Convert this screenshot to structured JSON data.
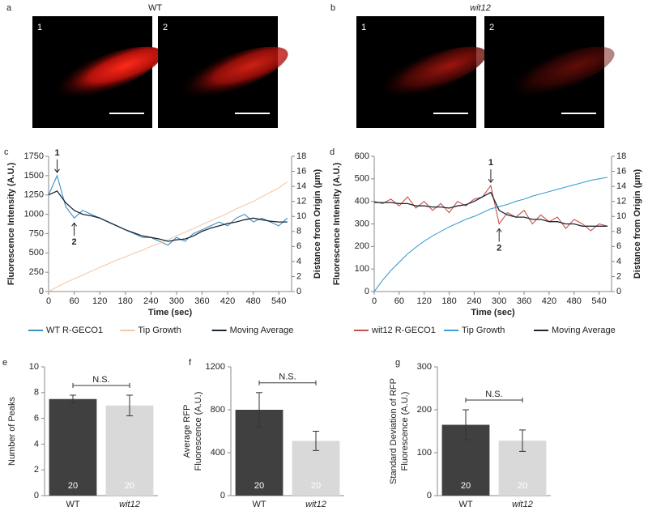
{
  "micrographs": [
    {
      "panel": "a",
      "title": "WT",
      "images": [
        "1",
        "2"
      ]
    },
    {
      "panel": "b",
      "title": "wit12",
      "images": [
        "1",
        "2"
      ]
    }
  ],
  "chart_data": [
    {
      "type": "line",
      "panel": "c",
      "x": [
        0,
        20,
        40,
        60,
        80,
        100,
        120,
        140,
        160,
        180,
        200,
        220,
        240,
        260,
        280,
        300,
        320,
        340,
        360,
        380,
        400,
        420,
        440,
        460,
        480,
        500,
        520,
        540,
        560
      ],
      "xlim": [
        0,
        570
      ],
      "xticks": [
        0,
        60,
        120,
        180,
        240,
        300,
        360,
        420,
        480,
        540
      ],
      "ylim": [
        0,
        1750
      ],
      "yticks": [
        0,
        250,
        500,
        750,
        1000,
        1250,
        1500,
        1750
      ],
      "y2lim": [
        0,
        18
      ],
      "y2ticks": [
        0,
        2,
        4,
        6,
        8,
        10,
        12,
        14,
        16,
        18
      ],
      "xlabel": "Time (sec)",
      "ylabel": "Fluorescence Intensity (A.U.)",
      "y2label": "Distance from Origin (µm)",
      "series": [
        {
          "name": "WT R-GECO1",
          "color": "#3f8fc4",
          "values": [
            1250,
            1500,
            1100,
            950,
            1050,
            1000,
            950,
            900,
            850,
            800,
            750,
            700,
            700,
            650,
            600,
            700,
            650,
            750,
            800,
            850,
            900,
            850,
            950,
            1000,
            900,
            950,
            900,
            850,
            950
          ]
        },
        {
          "name": "Tip Growth",
          "color": "#f5c9a8",
          "axis": "y2",
          "values": [
            0,
            0.6,
            1.2,
            1.7,
            2.2,
            2.7,
            3.2,
            3.7,
            4.2,
            4.6,
            5.1,
            5.5,
            6.0,
            6.4,
            6.9,
            7.4,
            7.9,
            8.4,
            8.9,
            9.4,
            9.9,
            10.4,
            11.0,
            11.5,
            12.0,
            12.6,
            13.2,
            13.8,
            14.6
          ]
        },
        {
          "name": "Moving Average",
          "color": "#1c2634",
          "values": [
            1250,
            1300,
            1150,
            1050,
            1000,
            980,
            950,
            900,
            850,
            800,
            760,
            720,
            700,
            680,
            650,
            670,
            680,
            720,
            780,
            820,
            850,
            880,
            900,
            930,
            950,
            930,
            910,
            900,
            900
          ]
        }
      ],
      "annotations": [
        {
          "text": "1",
          "x": 20,
          "position": "above"
        },
        {
          "text": "2",
          "x": 60,
          "position": "below"
        }
      ]
    },
    {
      "type": "line",
      "panel": "d",
      "x": [
        0,
        20,
        40,
        60,
        80,
        100,
        120,
        140,
        160,
        180,
        200,
        220,
        240,
        260,
        280,
        300,
        320,
        340,
        360,
        380,
        400,
        420,
        440,
        460,
        480,
        500,
        520,
        540,
        560
      ],
      "xlim": [
        0,
        570
      ],
      "xticks": [
        0,
        60,
        120,
        180,
        240,
        300,
        360,
        420,
        480,
        540
      ],
      "ylim": [
        0,
        600
      ],
      "yticks": [
        0,
        100,
        200,
        300,
        400,
        500,
        600
      ],
      "y2lim": [
        0,
        18
      ],
      "y2ticks": [
        0,
        2,
        4,
        6,
        8,
        10,
        12,
        14,
        16,
        18
      ],
      "xlabel": "Time (sec)",
      "ylabel": "Fluorescence Intensity (A.U.)",
      "y2label": "Distance from Origin (µm)",
      "series": [
        {
          "name": "wit12 R-GECO1",
          "color": "#c9504a",
          "values": [
            400,
            390,
            410,
            380,
            420,
            370,
            400,
            360,
            390,
            350,
            400,
            380,
            410,
            420,
            470,
            300,
            350,
            330,
            360,
            300,
            340,
            310,
            330,
            280,
            320,
            300,
            270,
            300,
            290
          ]
        },
        {
          "name": "Tip Growth",
          "color": "#3f9fd0",
          "axis": "y2",
          "values": [
            0,
            1.5,
            2.8,
            3.9,
            5.0,
            5.9,
            6.7,
            7.4,
            8.0,
            8.6,
            9.1,
            9.6,
            10.0,
            10.5,
            11.0,
            11.3,
            11.6,
            12.0,
            12.3,
            12.7,
            13.0,
            13.3,
            13.6,
            13.9,
            14.2,
            14.5,
            14.8,
            15.0,
            15.2
          ]
        },
        {
          "name": "Moving Average",
          "color": "#1c2634",
          "values": [
            395,
            395,
            395,
            390,
            390,
            380,
            380,
            375,
            375,
            370,
            380,
            385,
            400,
            420,
            440,
            360,
            340,
            330,
            330,
            320,
            320,
            310,
            310,
            300,
            300,
            290,
            290,
            290,
            290
          ]
        }
      ],
      "annotations": [
        {
          "text": "1",
          "x": 280,
          "position": "above"
        },
        {
          "text": "2",
          "x": 300,
          "position": "below"
        }
      ]
    },
    {
      "type": "bar",
      "panel": "e",
      "categories": [
        "WT",
        "wit12"
      ],
      "values": [
        7.5,
        7.0
      ],
      "errors": [
        0.3,
        0.8
      ],
      "colors": [
        "#404040",
        "#d9d9d9"
      ],
      "sample_sizes": [
        20,
        20
      ],
      "annotation": "N.S.",
      "ylim": [
        0,
        10
      ],
      "yticks": [
        0,
        2,
        4,
        6,
        8,
        10
      ],
      "ylabel": [
        "Number of Peaks"
      ]
    },
    {
      "type": "bar",
      "panel": "f",
      "categories": [
        "WT",
        "wit12"
      ],
      "values": [
        800,
        510
      ],
      "errors": [
        160,
        90
      ],
      "colors": [
        "#404040",
        "#d9d9d9"
      ],
      "sample_sizes": [
        20,
        20
      ],
      "annotation": "N.S.",
      "ylim": [
        0,
        1200
      ],
      "yticks": [
        0,
        400,
        800,
        1200
      ],
      "ylabel": [
        "Average RFP",
        "Fluorescence (A.U.)"
      ]
    },
    {
      "type": "bar",
      "panel": "g",
      "categories": [
        "WT",
        "wit12"
      ],
      "values": [
        165,
        128
      ],
      "errors": [
        35,
        25
      ],
      "colors": [
        "#404040",
        "#d9d9d9"
      ],
      "sample_sizes": [
        20,
        20
      ],
      "annotation": "N.S.",
      "ylim": [
        0,
        300
      ],
      "yticks": [
        0,
        100,
        200,
        300
      ],
      "ylabel": [
        "Standard Deviation of RFP",
        "Fluorescence (A.U.)"
      ]
    }
  ]
}
